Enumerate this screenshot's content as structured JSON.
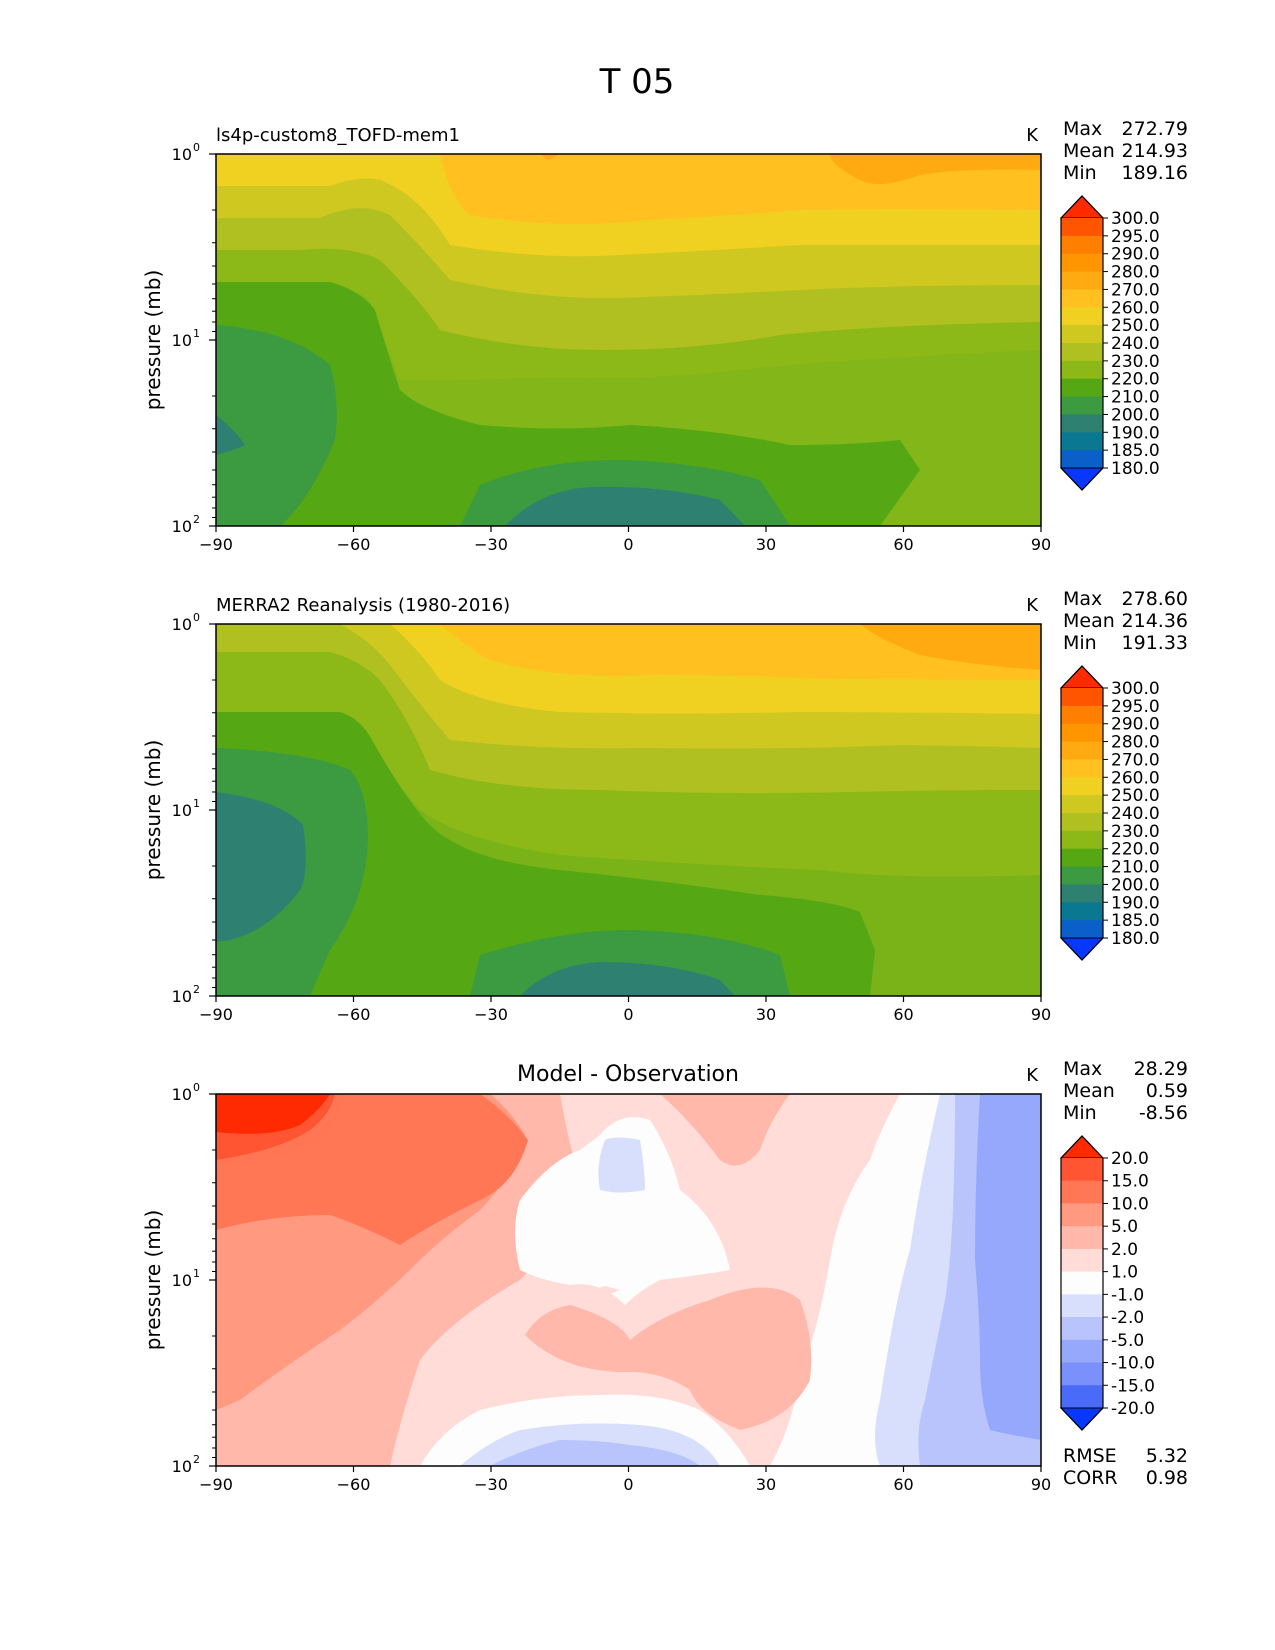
{
  "figure_title": "T 05",
  "chart_data": [
    {
      "type": "contour",
      "title": "ls4p-custom8_TOFD-mem1",
      "units": "K",
      "ylabel": "pressure (mb)",
      "xlabel": "",
      "xlim": [
        -90,
        90
      ],
      "xticks": [
        "−90",
        "−60",
        "−30",
        "0",
        "30",
        "60",
        "90"
      ],
      "xtick_values": [
        -90,
        -60,
        -30,
        0,
        30,
        60,
        90
      ],
      "ylim": [
        100,
        1
      ],
      "yscale": "log",
      "ytick_bases": [
        "10",
        "10",
        "10"
      ],
      "ytick_exps": [
        "2",
        "1",
        "0"
      ],
      "stats": [
        {
          "label": "Max",
          "value": "272.79"
        },
        {
          "label": "Mean",
          "value": "214.93"
        },
        {
          "label": "Min",
          "value": "189.16"
        }
      ],
      "colorbar": {
        "labels": [
          "300.0",
          "295.0",
          "290.0",
          "280.0",
          "270.0",
          "260.0",
          "250.0",
          "240.0",
          "230.0",
          "220.0",
          "210.0",
          "200.0",
          "190.0",
          "185.0",
          "180.0"
        ],
        "colors": [
          "#ff2a00",
          "#ff5500",
          "#ff7f00",
          "#ff9500",
          "#ffaa11",
          "#ffc020",
          "#f0d020",
          "#cfc820",
          "#b0c020",
          "#8cb818",
          "#55a814",
          "#3c9a40",
          "#2e8070",
          "#0a7890",
          "#0a60c8",
          "#0838ff"
        ]
      }
    },
    {
      "type": "contour",
      "title": "MERRA2 Reanalysis (1980-2016)",
      "units": "K",
      "ylabel": "pressure (mb)",
      "xlabel": "",
      "xlim": [
        -90,
        90
      ],
      "xticks": [
        "−90",
        "−60",
        "−30",
        "0",
        "30",
        "60",
        "90"
      ],
      "xtick_values": [
        -90,
        -60,
        -30,
        0,
        30,
        60,
        90
      ],
      "ylim": [
        100,
        1
      ],
      "yscale": "log",
      "ytick_bases": [
        "10",
        "10",
        "10"
      ],
      "ytick_exps": [
        "2",
        "1",
        "0"
      ],
      "stats": [
        {
          "label": "Max",
          "value": "278.60"
        },
        {
          "label": "Mean",
          "value": "214.36"
        },
        {
          "label": "Min",
          "value": "191.33"
        }
      ],
      "colorbar": {
        "labels": [
          "300.0",
          "295.0",
          "290.0",
          "280.0",
          "270.0",
          "260.0",
          "250.0",
          "240.0",
          "230.0",
          "220.0",
          "210.0",
          "200.0",
          "190.0",
          "185.0",
          "180.0"
        ],
        "colors": [
          "#ff2a00",
          "#ff5500",
          "#ff7f00",
          "#ff9500",
          "#ffaa11",
          "#ffc020",
          "#f0d020",
          "#cfc820",
          "#b0c020",
          "#8cb818",
          "#55a814",
          "#3c9a40",
          "#2e8070",
          "#0a7890",
          "#0a60c8",
          "#0838ff"
        ]
      }
    },
    {
      "type": "contour",
      "title": "Model - Observation",
      "units": "K",
      "ylabel": "pressure (mb)",
      "xlabel": "",
      "xlim": [
        -90,
        90
      ],
      "xticks": [
        "−90",
        "−60",
        "−30",
        "0",
        "30",
        "60",
        "90"
      ],
      "xtick_values": [
        -90,
        -60,
        -30,
        0,
        30,
        60,
        90
      ],
      "ylim": [
        100,
        1
      ],
      "yscale": "log",
      "ytick_bases": [
        "10",
        "10",
        "10"
      ],
      "ytick_exps": [
        "2",
        "1",
        "0"
      ],
      "stats": [
        {
          "label": "Max",
          "value": "28.29"
        },
        {
          "label": "Mean",
          "value": "0.59"
        },
        {
          "label": "Min",
          "value": "-8.56"
        }
      ],
      "extra_stats": [
        {
          "label": "RMSE",
          "value": "5.32"
        },
        {
          "label": "CORR",
          "value": "0.98"
        }
      ],
      "colorbar": {
        "labels": [
          "20.0",
          "15.0",
          "10.0",
          "5.0",
          "2.0",
          "1.0",
          "-1.0",
          "-2.0",
          "-5.0",
          "-10.0",
          "-15.0",
          "-20.0"
        ],
        "colors": [
          "#ff2a00",
          "#ff5533",
          "#ff7755",
          "#ff9a80",
          "#ffb8aa",
          "#ffdcd8",
          "#fdfdfd",
          "#d8dffc",
          "#b8c4fb",
          "#96a8fb",
          "#7a90fa",
          "#4a6af8",
          "#0838ff"
        ]
      }
    }
  ]
}
